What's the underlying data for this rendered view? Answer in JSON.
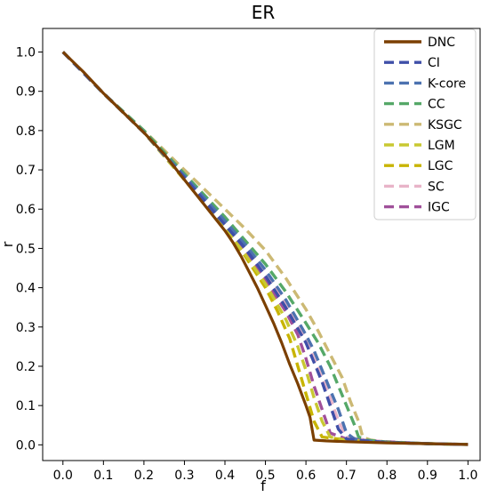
{
  "chart_data": {
    "type": "line",
    "title": "ER",
    "xlabel": "f",
    "ylabel": "r",
    "xlim": [
      -0.05,
      1.03
    ],
    "ylim": [
      -0.04,
      1.06
    ],
    "xticks": [
      "0.0",
      "0.1",
      "0.2",
      "0.3",
      "0.4",
      "0.5",
      "0.6",
      "0.7",
      "0.8",
      "0.9",
      "1.0"
    ],
    "yticks": [
      "0.0",
      "0.1",
      "0.2",
      "0.3",
      "0.4",
      "0.5",
      "0.6",
      "0.7",
      "0.8",
      "0.9",
      "1.0"
    ],
    "grid": false,
    "legend_position": "top-right",
    "series": [
      {
        "name": "DNC",
        "color": "#7b3f00",
        "style": "solid",
        "x": [
          0,
          0.05,
          0.1,
          0.15,
          0.2,
          0.25,
          0.3,
          0.35,
          0.4,
          0.42,
          0.44,
          0.46,
          0.48,
          0.5,
          0.52,
          0.54,
          0.56,
          0.58,
          0.6,
          0.61,
          0.62,
          0.65,
          0.7,
          0.8,
          0.9,
          1.0
        ],
        "y": [
          1.0,
          0.95,
          0.895,
          0.845,
          0.795,
          0.74,
          0.675,
          0.61,
          0.545,
          0.515,
          0.48,
          0.44,
          0.4,
          0.355,
          0.31,
          0.26,
          0.205,
          0.155,
          0.1,
          0.07,
          0.012,
          0.01,
          0.008,
          0.005,
          0.003,
          0.001
        ]
      },
      {
        "name": "CI",
        "color": "#3f4fa8",
        "style": "dashed",
        "x": [
          0,
          0.1,
          0.2,
          0.3,
          0.4,
          0.45,
          0.5,
          0.55,
          0.6,
          0.62,
          0.64,
          0.66,
          0.68,
          0.7,
          0.75,
          0.8,
          0.9,
          1.0
        ],
        "y": [
          1.0,
          0.895,
          0.795,
          0.68,
          0.56,
          0.5,
          0.43,
          0.35,
          0.26,
          0.21,
          0.16,
          0.1,
          0.04,
          0.015,
          0.01,
          0.006,
          0.003,
          0.001
        ]
      },
      {
        "name": "K-core",
        "color": "#4c72b0",
        "style": "dashed",
        "x": [
          0,
          0.1,
          0.2,
          0.3,
          0.4,
          0.45,
          0.5,
          0.55,
          0.6,
          0.62,
          0.64,
          0.66,
          0.68,
          0.7,
          0.72,
          0.75,
          0.8,
          0.9,
          1.0
        ],
        "y": [
          1.0,
          0.895,
          0.795,
          0.685,
          0.57,
          0.51,
          0.445,
          0.37,
          0.28,
          0.24,
          0.19,
          0.14,
          0.09,
          0.03,
          0.015,
          0.01,
          0.006,
          0.003,
          0.001
        ]
      },
      {
        "name": "CC",
        "color": "#55a868",
        "style": "dashed",
        "x": [
          0,
          0.1,
          0.2,
          0.3,
          0.4,
          0.45,
          0.5,
          0.55,
          0.6,
          0.63,
          0.66,
          0.68,
          0.7,
          0.72,
          0.73,
          0.75,
          0.8,
          0.9,
          1.0
        ],
        "y": [
          1.0,
          0.895,
          0.8,
          0.69,
          0.58,
          0.52,
          0.46,
          0.39,
          0.31,
          0.26,
          0.2,
          0.15,
          0.1,
          0.05,
          0.02,
          0.012,
          0.007,
          0.003,
          0.001
        ]
      },
      {
        "name": "KSGC",
        "color": "#ccb974",
        "style": "dashed",
        "x": [
          0,
          0.1,
          0.2,
          0.3,
          0.4,
          0.45,
          0.5,
          0.55,
          0.6,
          0.63,
          0.66,
          0.69,
          0.71,
          0.73,
          0.74,
          0.76,
          0.8,
          0.9,
          1.0
        ],
        "y": [
          1.0,
          0.895,
          0.8,
          0.7,
          0.6,
          0.55,
          0.495,
          0.425,
          0.345,
          0.29,
          0.23,
          0.17,
          0.11,
          0.06,
          0.02,
          0.012,
          0.007,
          0.003,
          0.001
        ]
      },
      {
        "name": "LGM",
        "color": "#c8c832",
        "style": "dashed",
        "x": [
          0,
          0.1,
          0.2,
          0.3,
          0.4,
          0.45,
          0.5,
          0.55,
          0.58,
          0.6,
          0.62,
          0.64,
          0.66,
          0.7,
          0.8,
          0.9,
          1.0
        ],
        "y": [
          1.0,
          0.895,
          0.795,
          0.675,
          0.55,
          0.485,
          0.41,
          0.32,
          0.25,
          0.19,
          0.12,
          0.06,
          0.02,
          0.012,
          0.006,
          0.003,
          0.001
        ]
      },
      {
        "name": "LGC",
        "color": "#c8b400",
        "style": "dashed",
        "x": [
          0,
          0.1,
          0.2,
          0.3,
          0.4,
          0.45,
          0.5,
          0.53,
          0.56,
          0.58,
          0.6,
          0.62,
          0.64,
          0.7,
          0.8,
          0.9,
          1.0
        ],
        "y": [
          1.0,
          0.895,
          0.795,
          0.675,
          0.548,
          0.48,
          0.4,
          0.34,
          0.27,
          0.2,
          0.13,
          0.06,
          0.02,
          0.012,
          0.006,
          0.003,
          0.001
        ]
      },
      {
        "name": "SC",
        "color": "#e8b4c8",
        "style": "dashed",
        "x": [
          0,
          0.1,
          0.2,
          0.3,
          0.4,
          0.45,
          0.5,
          0.55,
          0.6,
          0.62,
          0.64,
          0.66,
          0.68,
          0.7,
          0.75,
          0.8,
          0.9,
          1.0
        ],
        "y": [
          1.0,
          0.895,
          0.795,
          0.68,
          0.565,
          0.505,
          0.44,
          0.36,
          0.27,
          0.22,
          0.17,
          0.12,
          0.06,
          0.02,
          0.012,
          0.007,
          0.003,
          0.001
        ]
      },
      {
        "name": "IGC",
        "color": "#a0509a",
        "style": "dashed",
        "x": [
          0,
          0.1,
          0.2,
          0.3,
          0.4,
          0.45,
          0.5,
          0.55,
          0.58,
          0.6,
          0.62,
          0.64,
          0.66,
          0.7,
          0.8,
          0.9,
          1.0
        ],
        "y": [
          1.0,
          0.895,
          0.795,
          0.675,
          0.555,
          0.49,
          0.42,
          0.34,
          0.28,
          0.22,
          0.15,
          0.09,
          0.03,
          0.015,
          0.008,
          0.003,
          0.001
        ]
      }
    ]
  }
}
